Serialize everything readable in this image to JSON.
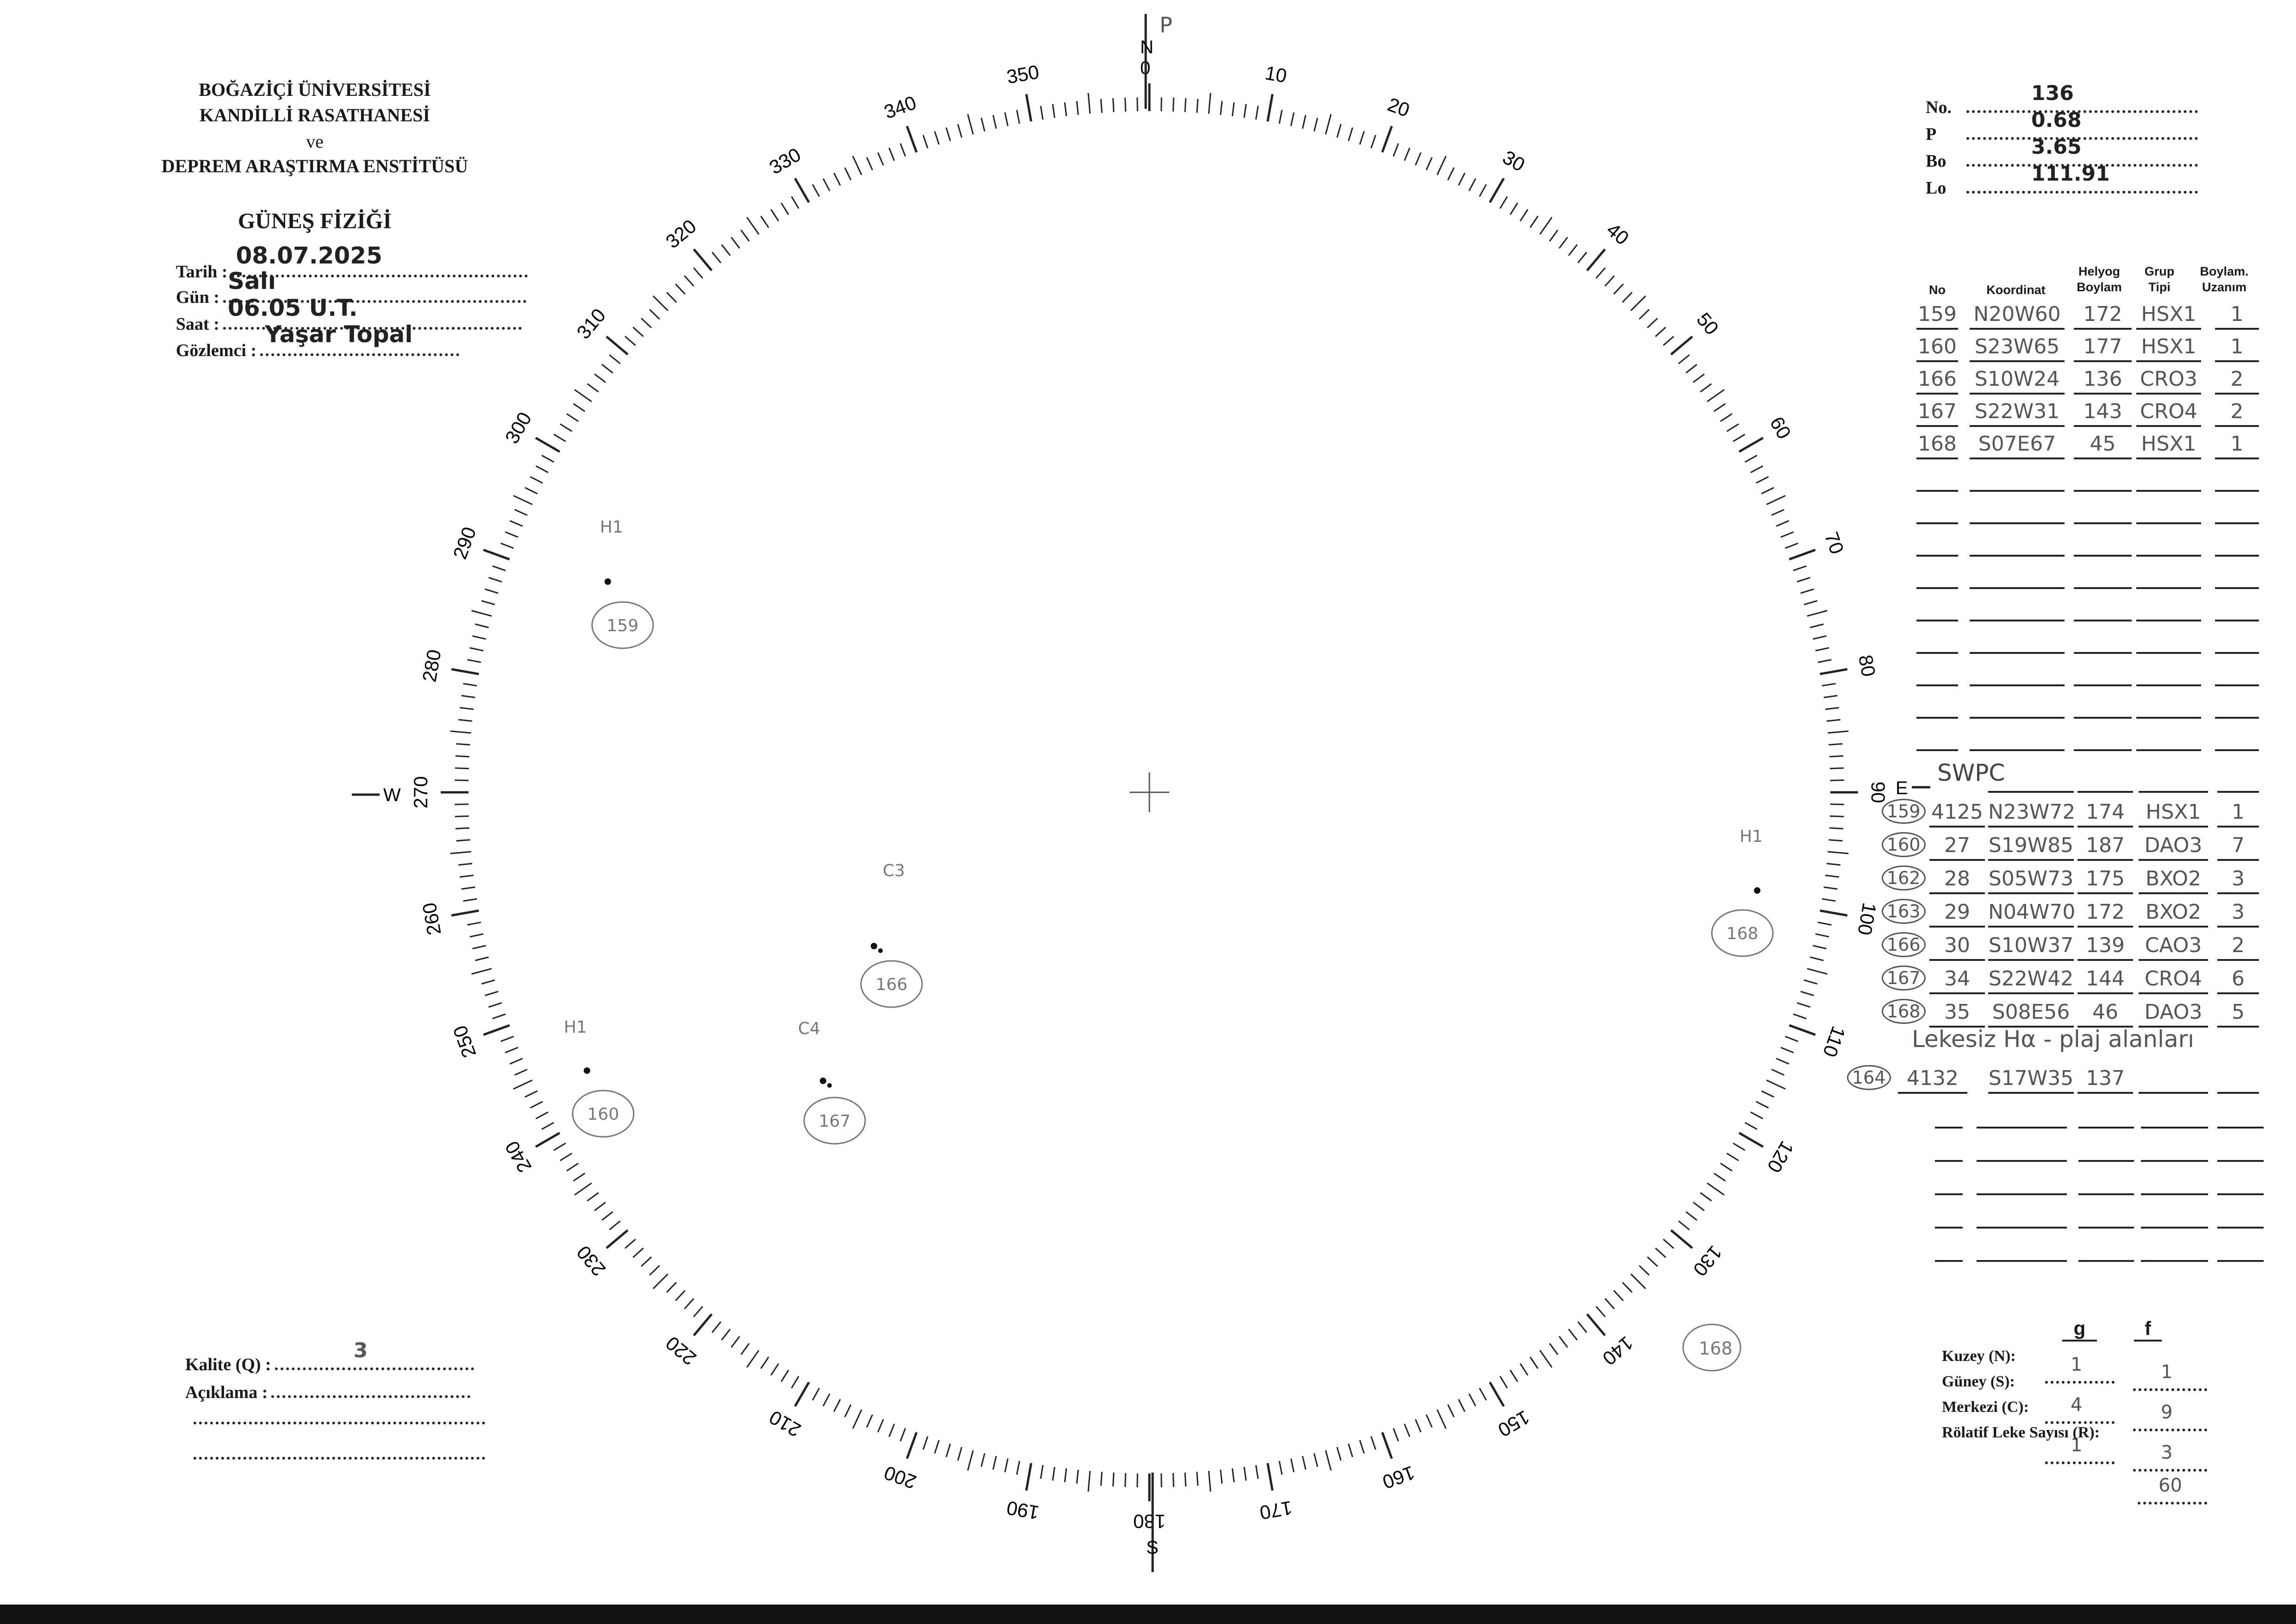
{
  "header": {
    "line1": "BOĞAZİÇİ ÜNİVERSİTESİ",
    "line2": "KANDİLLİ RASATHANESİ",
    "line3": "ve",
    "line4": "DEPREM ARAŞTIRMA ENSTİTÜSÜ",
    "title": "GÜNEŞ FİZİĞİ"
  },
  "observation": {
    "date_label": "Tarih :",
    "date": "08.07.2025",
    "day_label": "Gün :",
    "day": "Salı",
    "time_label": "Saat :",
    "time": "06.05 U.T.",
    "observer_label": "Gözlemci :",
    "observer": "Yaşar Topal"
  },
  "parameters": {
    "no_label": "No.",
    "no": "136",
    "p_label": "P",
    "p": "0.68",
    "bo_label": "Bo",
    "bo": "3.65",
    "lo_label": "Lo",
    "lo": "111.91"
  },
  "groups_table": {
    "headers": [
      "No",
      "Koordinat",
      "Helyog Boylam",
      "Grup Tipi",
      "Boylam. Uzanım"
    ],
    "rows": [
      [
        "159",
        "N20W60",
        "172",
        "HSX1",
        "1"
      ],
      [
        "160",
        "S23W65",
        "177",
        "HSX1",
        "1"
      ],
      [
        "166",
        "S10W24",
        "136",
        "CRO3",
        "2"
      ],
      [
        "167",
        "S22W31",
        "143",
        "CRO4",
        "2"
      ],
      [
        "168",
        "S07E67",
        "45",
        "HSX1",
        "1"
      ]
    ]
  },
  "swpc": {
    "title": "SWPC",
    "rows": [
      [
        "159",
        "4125",
        "N23W72",
        "174",
        "HSX1",
        "1"
      ],
      [
        "160",
        "27",
        "S19W85",
        "187",
        "DAO3",
        "7"
      ],
      [
        "162",
        "28",
        "S05W73",
        "175",
        "BXO2",
        "3"
      ],
      [
        "163",
        "29",
        "N04W70",
        "172",
        "BXO2",
        "3"
      ],
      [
        "166",
        "30",
        "S10W37",
        "139",
        "CAO3",
        "2"
      ],
      [
        "167",
        "34",
        "S22W42",
        "144",
        "CRO4",
        "6"
      ],
      [
        "168",
        "35",
        "S08E56",
        "46",
        "DAO3",
        "5"
      ]
    ],
    "note": "Lekesiz Hα - plaj alanları",
    "extra_row": [
      "164",
      "4132",
      "S17W35",
      "137"
    ]
  },
  "compass": {
    "north": "N",
    "south": "S",
    "east": "E",
    "west": "W",
    "pole_mark": "P",
    "labels": [
      "0",
      "10",
      "20",
      "30",
      "40",
      "50",
      "60",
      "70",
      "80",
      "90",
      "100",
      "110",
      "120",
      "130",
      "140",
      "150",
      "160",
      "170",
      "180",
      "190",
      "200",
      "210",
      "220",
      "230",
      "240",
      "250",
      "260",
      "270",
      "280",
      "290",
      "300",
      "310",
      "320",
      "330",
      "340",
      "350"
    ]
  },
  "sunspots": [
    {
      "group": "159",
      "type": "H1"
    },
    {
      "group": "160",
      "type": "H1"
    },
    {
      "group": "166",
      "type": "C3"
    },
    {
      "group": "167",
      "type": "C4"
    },
    {
      "group": "168",
      "type": "H1"
    }
  ],
  "stray_label": "168",
  "quality": {
    "label": "Kalite (Q) :",
    "value": "3",
    "comment_label": "Açıklama :"
  },
  "counts": {
    "g_label": "g",
    "f_label": "f",
    "north_label": "Kuzey (N):",
    "north_g": "1",
    "north_f": "1",
    "south_label": "Güney (S):",
    "south_g": "4",
    "south_f": "9",
    "center_label": "Merkezi (C):",
    "center_g": "1",
    "center_f": "3",
    "r_label": "Rölatif Leke Sayısı (R):",
    "r": "60"
  },
  "colors": {
    "ink": "#1a1a1a",
    "pencil": "#555555"
  }
}
